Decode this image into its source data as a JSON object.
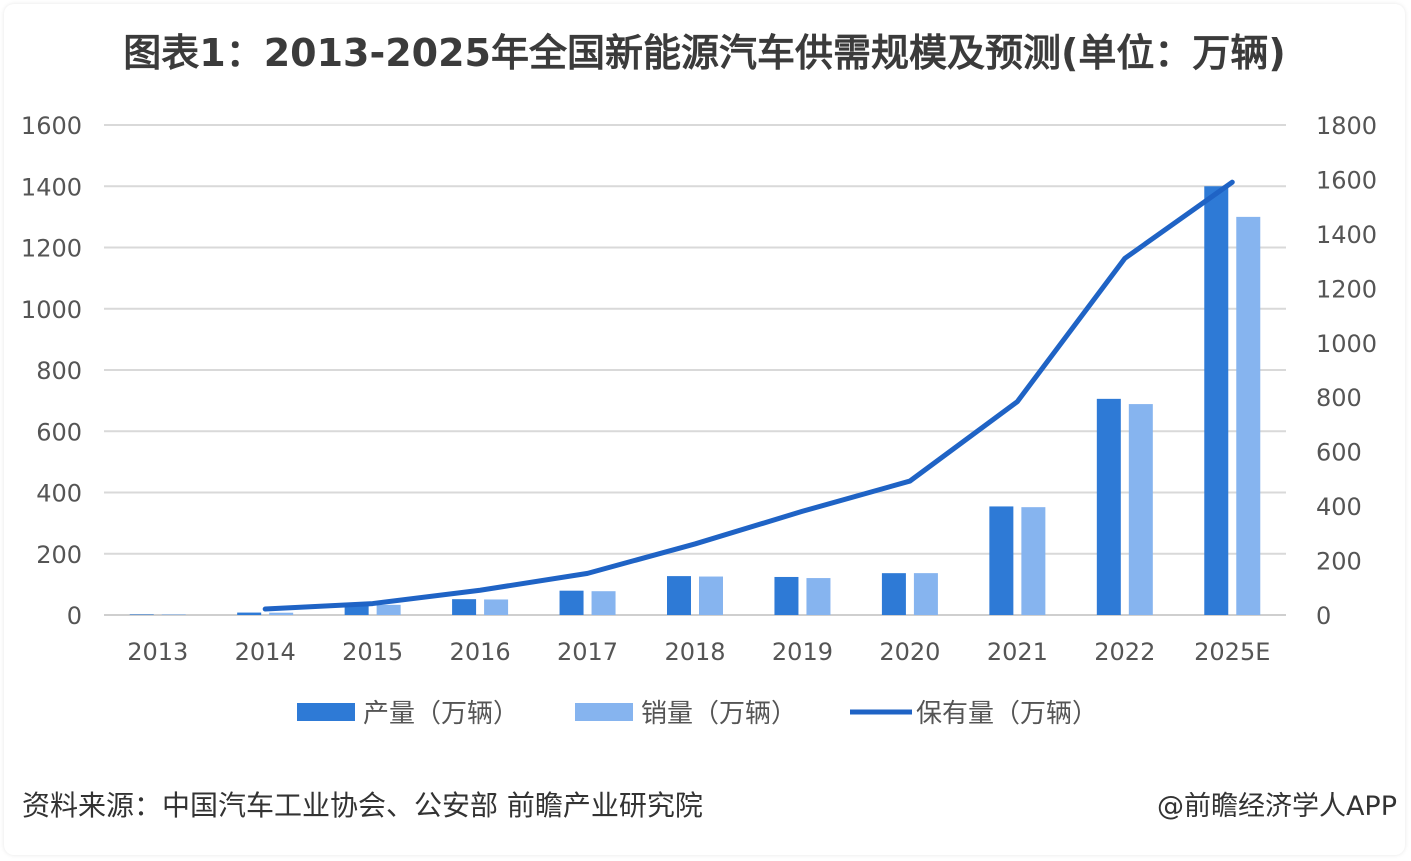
{
  "title": "图表1：2013-2025年全国新能源汽车供需规模及预测(单位：万辆)",
  "source": "资料来源：中国汽车工业协会、公安部 前瞻产业研究院",
  "credit": "@前瞻经济学人APP",
  "colors": {
    "production": "#2e7ad6",
    "sales": "#86b4ef",
    "stock": "#1f63c5",
    "grid": "#d9d9d9",
    "axis_text": "#555555"
  },
  "chart_data": {
    "type": "bar",
    "categories": [
      "2013",
      "2014",
      "2015",
      "2016",
      "2017",
      "2018",
      "2019",
      "2020",
      "2021",
      "2022",
      "2025E"
    ],
    "left_axis": {
      "ylim": [
        0,
        1600
      ],
      "ticks": [
        0,
        200,
        400,
        600,
        800,
        1000,
        1200,
        1400,
        1600
      ],
      "tick_labels": [
        "0",
        "200",
        "400",
        "600",
        "800",
        "1000",
        "1200",
        "1400",
        "1600"
      ]
    },
    "right_axis": {
      "ylim": [
        0,
        1800
      ],
      "ticks": [
        0,
        200,
        400,
        600,
        800,
        1000,
        1200,
        1400,
        1600,
        1800
      ],
      "tick_labels": [
        "0",
        "200",
        "400",
        "600",
        "800",
        "1000",
        "1200",
        "1400",
        "1600",
        "1800"
      ]
    },
    "series": [
      {
        "name": "产量（万辆）",
        "type": "bar",
        "axis": "left",
        "values": [
          1.8,
          7.9,
          37.9,
          51.7,
          79.4,
          127,
          124.2,
          136.6,
          354.5,
          705.8,
          1400
        ]
      },
      {
        "name": "销量（万辆）",
        "type": "bar",
        "axis": "left",
        "values": [
          1.8,
          7.5,
          33.1,
          50.7,
          77.7,
          125.6,
          120.6,
          136.7,
          352.1,
          688.7,
          1300
        ]
      },
      {
        "name": "保有量（万辆）",
        "type": "line",
        "axis": "right",
        "x_start_index": 1,
        "values": [
          null,
          22,
          42,
          91,
          153,
          261,
          381,
          492,
          784,
          1310,
          1590
        ]
      }
    ],
    "grid": true,
    "legend": "bottom"
  }
}
